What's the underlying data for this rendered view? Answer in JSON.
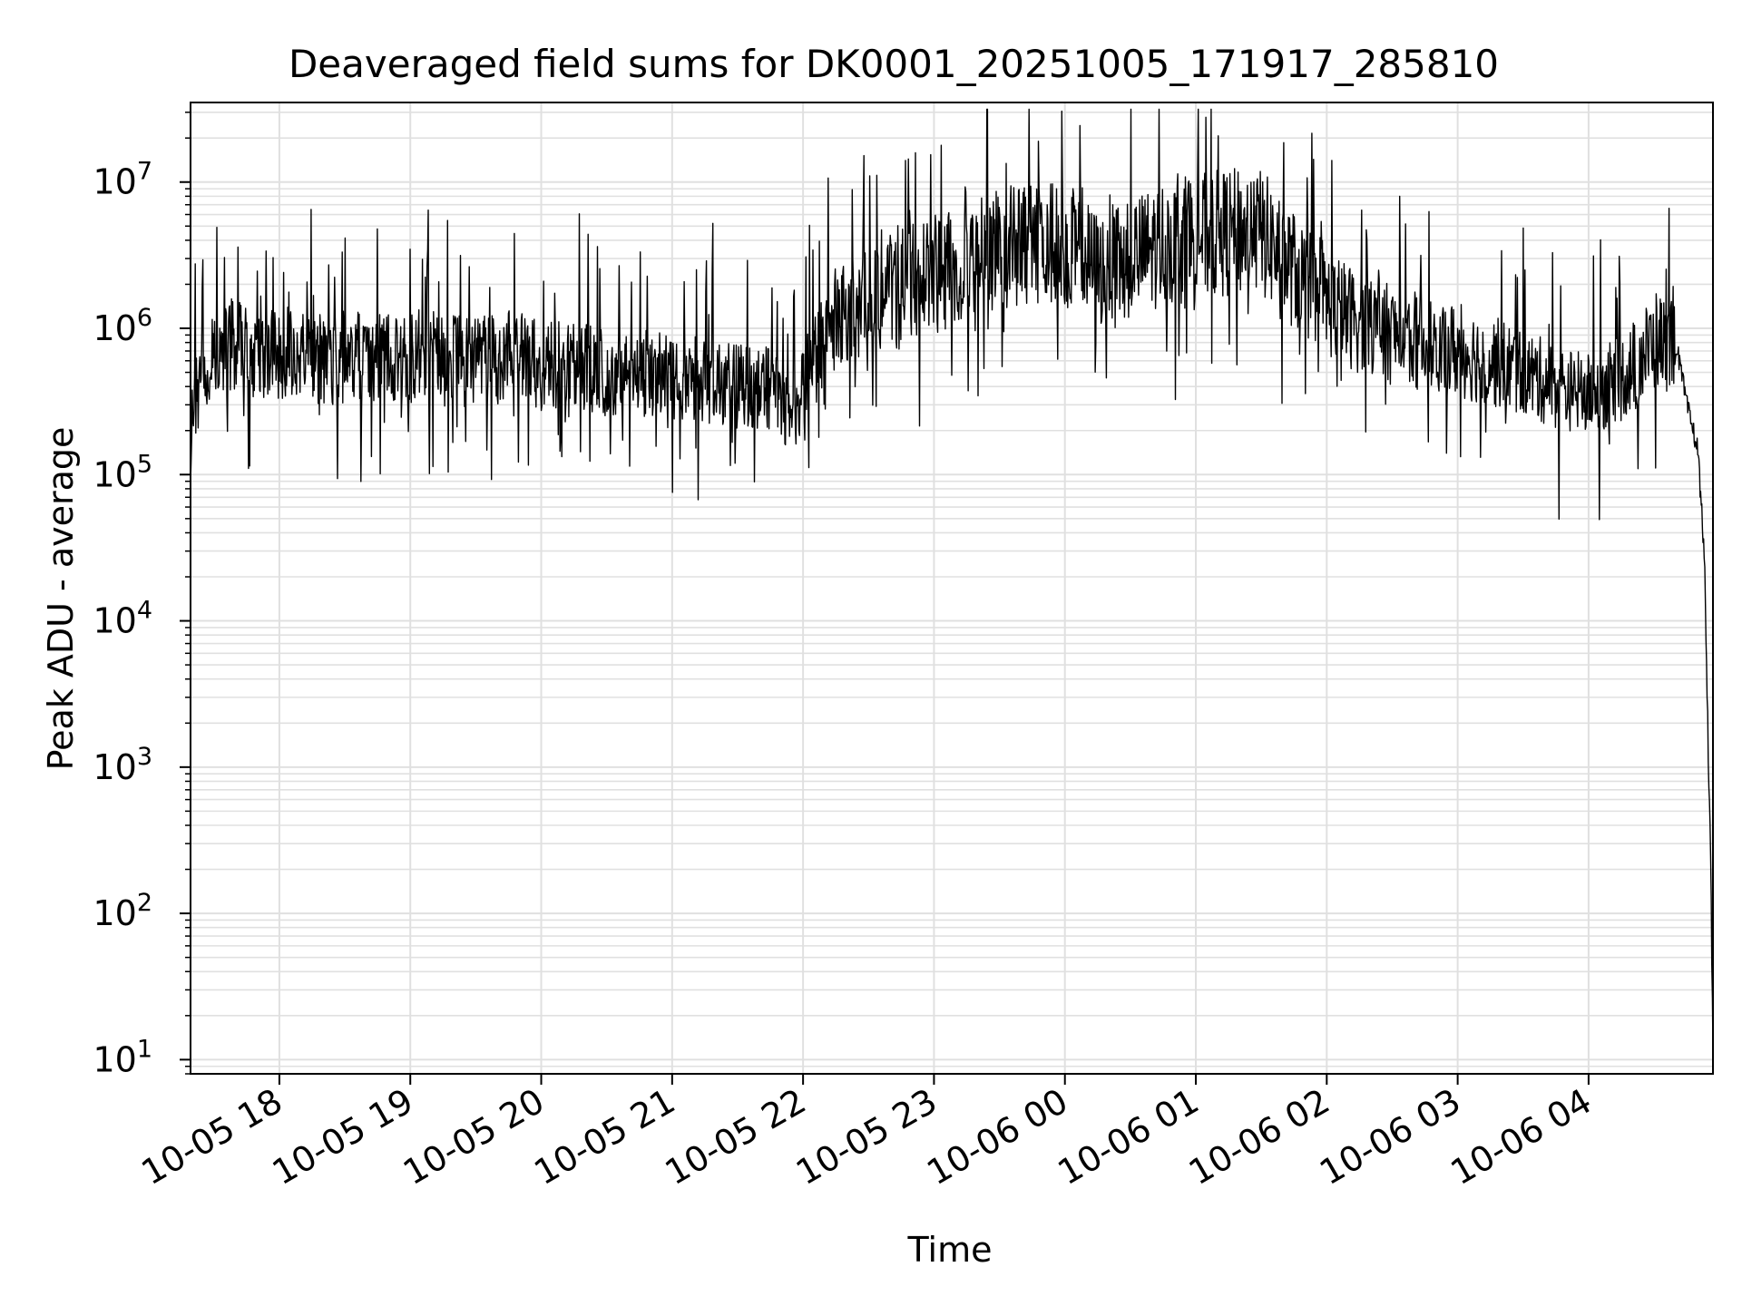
{
  "chart_data": {
    "type": "line",
    "title": "Deaveraged field sums for DK0001_20251005_171917_285810",
    "xlabel": "Time",
    "ylabel": "Peak ADU - average",
    "y_scale": "log",
    "ylim": [
      8,
      35000000
    ],
    "xlim": [
      "2025-10-05 17:19:17",
      "2025-10-06 04:57:00"
    ],
    "grid": true,
    "line_color": "#000000",
    "grid_color": "#e0e0e0",
    "x_ticks": [
      {
        "label": "10-05 18",
        "t": "2025-10-05 18:00"
      },
      {
        "label": "10-05 19",
        "t": "2025-10-05 19:00"
      },
      {
        "label": "10-05 20",
        "t": "2025-10-05 20:00"
      },
      {
        "label": "10-05 21",
        "t": "2025-10-05 21:00"
      },
      {
        "label": "10-05 22",
        "t": "2025-10-05 22:00"
      },
      {
        "label": "10-05 23",
        "t": "2025-10-05 23:00"
      },
      {
        "label": "10-06 00",
        "t": "2025-10-06 00:00"
      },
      {
        "label": "10-06 01",
        "t": "2025-10-06 01:00"
      },
      {
        "label": "10-06 02",
        "t": "2025-10-06 02:00"
      },
      {
        "label": "10-06 03",
        "t": "2025-10-06 03:00"
      },
      {
        "label": "10-06 04",
        "t": "2025-10-06 04:00"
      }
    ],
    "y_ticks": [
      {
        "base": "10",
        "exp": "1",
        "value": 10
      },
      {
        "base": "10",
        "exp": "2",
        "value": 100
      },
      {
        "base": "10",
        "exp": "3",
        "value": 1000
      },
      {
        "base": "10",
        "exp": "4",
        "value": 10000
      },
      {
        "base": "10",
        "exp": "5",
        "value": 100000
      },
      {
        "base": "10",
        "exp": "6",
        "value": 1000000
      },
      {
        "base": "10",
        "exp": "7",
        "value": 10000000
      }
    ],
    "series": [
      {
        "values_note_free": true,
        "x": [
          "2025-10-05 17:19",
          "2025-10-05 17:20",
          "2025-10-05 17:25",
          "2025-10-05 17:30",
          "2025-10-05 17:35",
          "2025-10-05 17:40",
          "2025-10-05 17:45",
          "2025-10-05 17:50",
          "2025-10-05 18:00",
          "2025-10-05 18:10",
          "2025-10-05 18:20",
          "2025-10-05 18:30",
          "2025-10-05 18:45",
          "2025-10-05 19:00",
          "2025-10-05 19:15",
          "2025-10-05 19:30",
          "2025-10-05 19:45",
          "2025-10-05 20:00",
          "2025-10-05 20:15",
          "2025-10-05 20:30",
          "2025-10-05 20:45",
          "2025-10-05 21:00",
          "2025-10-05 21:15",
          "2025-10-05 21:30",
          "2025-10-05 21:45",
          "2025-10-05 21:55",
          "2025-10-05 22:05",
          "2025-10-05 22:15",
          "2025-10-05 22:30",
          "2025-10-05 22:45",
          "2025-10-05 23:00",
          "2025-10-05 23:15",
          "2025-10-05 23:30",
          "2025-10-05 23:45",
          "2025-10-06 00:00",
          "2025-10-06 00:15",
          "2025-10-06 00:30",
          "2025-10-06 00:45",
          "2025-10-06 01:00",
          "2025-10-06 01:15",
          "2025-10-06 01:30",
          "2025-10-06 01:45",
          "2025-10-06 02:00",
          "2025-10-06 02:15",
          "2025-10-06 02:30",
          "2025-10-06 02:45",
          "2025-10-06 03:00",
          "2025-10-06 03:15",
          "2025-10-06 03:30",
          "2025-10-06 03:45",
          "2025-10-06 04:00",
          "2025-10-06 04:15",
          "2025-10-06 04:30",
          "2025-10-06 04:40",
          "2025-10-06 04:45",
          "2025-10-06 04:50",
          "2025-10-06 04:53",
          "2025-10-06 04:55",
          "2025-10-06 04:56",
          "2025-10-06 04:57"
        ],
        "values": [
          100000,
          350000,
          400000,
          600000,
          700000,
          800000,
          750000,
          700000,
          650000,
          700000,
          600000,
          650000,
          600000,
          650000,
          600000,
          600000,
          650000,
          550000,
          600000,
          500000,
          500000,
          450000,
          450000,
          400000,
          400000,
          250000,
          600000,
          1200000,
          1600000,
          2000000,
          2300000,
          2800000,
          3500000,
          3800000,
          3800000,
          2500000,
          3000000,
          3800000,
          4200000,
          4500000,
          4500000,
          2500000,
          1500000,
          1100000,
          900000,
          800000,
          700000,
          600000,
          500000,
          400000,
          350000,
          450000,
          800000,
          800000,
          300000,
          150000,
          30000,
          1000,
          200,
          10
        ]
      }
    ]
  }
}
